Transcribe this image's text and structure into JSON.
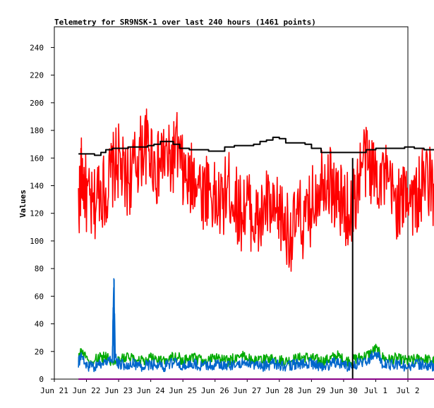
{
  "chart_data": {
    "type": "line",
    "title": "Telemetry for SR9NSK-1 over last 240 hours (1461 points)",
    "ylabel": "Values",
    "xlabel": "",
    "ylim": [
      0,
      255
    ],
    "y_ticks": [
      0,
      20,
      40,
      60,
      80,
      100,
      120,
      140,
      160,
      180,
      200,
      220,
      240
    ],
    "x_ticks": [
      "Jun 21",
      "Jun 22",
      "Jun 23",
      "Jun 24",
      "Jun 25",
      "Jun 26",
      "Jun 27",
      "Jun 28",
      "Jun 29",
      "Jun 30",
      "Jul 1",
      "Jul 2"
    ],
    "x_range_days": [
      "Jun 21",
      "Jul 2"
    ],
    "grid": false,
    "legend": "none",
    "colors": {
      "red": "#ff0000",
      "black": "#000000",
      "green": "#00aa00",
      "blue": "#0066cc",
      "purple": "#880088"
    },
    "series": [
      {
        "color": "red",
        "x_days": [
          0.75,
          0.85,
          1.0,
          1.2,
          1.4,
          1.6,
          1.8,
          2.0,
          2.2,
          2.4,
          2.6,
          2.8,
          3.0,
          3.2,
          3.4,
          3.6,
          3.8,
          4.0,
          4.2,
          4.4,
          4.6,
          4.8,
          5.0,
          5.2,
          5.4,
          5.6,
          5.8,
          6.0,
          6.2,
          6.4,
          6.6,
          6.8,
          7.0,
          7.2,
          7.4,
          7.6,
          7.8,
          8.0,
          8.2,
          8.4,
          8.6,
          8.8,
          9.0,
          9.2,
          9.4,
          9.6,
          9.8,
          10.0,
          10.2,
          10.4,
          10.6,
          10.8,
          11.0,
          11.2,
          11.4,
          11.6,
          11.8,
          12.0,
          12.2,
          12.4,
          12.6
        ],
        "values": [
          125,
          150,
          132,
          120,
          140,
          135,
          150,
          158,
          142,
          148,
          160,
          170,
          165,
          150,
          162,
          155,
          168,
          148,
          140,
          150,
          135,
          140,
          128,
          125,
          140,
          130,
          120,
          128,
          115,
          112,
          128,
          115,
          120,
          110,
          105,
          118,
          110,
          125,
          140,
          150,
          142,
          130,
          126,
          120,
          135,
          160,
          155,
          148,
          150,
          138,
          130,
          125,
          140,
          128,
          135,
          150,
          132,
          140,
          128,
          138,
          132
        ],
        "min_max": [
          80,
          195
        ]
      },
      {
        "color": "black",
        "x_days": [
          0.75,
          1.1,
          1.25,
          1.45,
          1.6,
          1.8,
          2.0,
          2.3,
          2.5,
          2.7,
          2.9,
          3.1,
          3.3,
          3.5,
          3.7,
          3.9,
          4.2,
          4.5,
          4.8,
          5.0,
          5.3,
          5.6,
          5.9,
          6.2,
          6.4,
          6.6,
          6.8,
          7.0,
          7.2,
          7.6,
          7.8,
          8.0,
          8.3,
          8.6,
          8.8,
          9.1,
          9.3,
          9.5,
          9.7,
          10.0,
          10.3,
          10.6,
          10.9,
          11.2,
          11.5,
          11.8,
          12.0,
          12.3,
          12.6
        ],
        "values": [
          163,
          163,
          162,
          164,
          166,
          167,
          167,
          168,
          168,
          168,
          169,
          170,
          172,
          172,
          170,
          167,
          166,
          166,
          165,
          165,
          168,
          169,
          169,
          170,
          172,
          173,
          175,
          174,
          171,
          171,
          170,
          167,
          164,
          164,
          164,
          164,
          164,
          164,
          166,
          167,
          167,
          167,
          168,
          167,
          166,
          166,
          166,
          168,
          169
        ]
      },
      {
        "color": "green",
        "x_days": [
          0.75,
          0.85,
          1.0,
          1.2,
          1.4,
          1.6,
          1.8,
          2.0,
          2.2,
          2.4,
          2.6,
          2.8,
          3.0,
          3.2,
          3.4,
          3.6,
          3.8,
          4.0,
          4.2,
          4.4,
          4.6,
          4.8,
          5.0,
          5.2,
          5.4,
          5.6,
          5.8,
          6.0,
          6.2,
          6.4,
          6.6,
          6.8,
          7.0,
          7.2,
          7.4,
          7.6,
          7.8,
          8.0,
          8.2,
          8.4,
          8.6,
          8.8,
          9.0,
          9.2,
          9.4,
          9.6,
          9.8,
          10.0,
          10.2,
          10.4,
          10.6,
          10.8,
          11.0,
          11.2,
          11.4,
          11.6,
          11.8,
          12.0,
          12.2,
          12.4,
          12.6
        ],
        "values": [
          15,
          20,
          14,
          13,
          15,
          16,
          13,
          14,
          15,
          16,
          14,
          13,
          15,
          14,
          13,
          15,
          16,
          14,
          14,
          15,
          13,
          14,
          15,
          14,
          13,
          15,
          17,
          15,
          14,
          13,
          14,
          15,
          14,
          13,
          14,
          15,
          16,
          15,
          14,
          13,
          15,
          17,
          14,
          13,
          15,
          16,
          18,
          22,
          16,
          14,
          15,
          14,
          13,
          14,
          15,
          14,
          13,
          15,
          14,
          16,
          15
        ]
      },
      {
        "color": "blue",
        "x_days": [
          0.75,
          0.85,
          1.0,
          1.2,
          1.4,
          1.6,
          1.8,
          1.85,
          1.9,
          2.0,
          2.2,
          2.4,
          2.6,
          2.8,
          3.0,
          3.2,
          3.4,
          3.6,
          3.8,
          4.0,
          4.2,
          4.4,
          4.6,
          4.8,
          5.0,
          5.2,
          5.4,
          5.6,
          5.8,
          6.0,
          6.2,
          6.4,
          6.6,
          6.8,
          7.0,
          7.2,
          7.4,
          7.6,
          7.8,
          8.0,
          8.2,
          8.4,
          8.6,
          8.8,
          9.0,
          9.2,
          9.4,
          9.6,
          9.8,
          10.0,
          10.2,
          10.4,
          10.6,
          10.8,
          11.0,
          11.2,
          11.4,
          11.6,
          11.8,
          12.0,
          12.2,
          12.4,
          12.6
        ],
        "values": [
          12,
          18,
          10,
          9,
          11,
          12,
          14,
          72,
          15,
          11,
          10,
          12,
          9,
          10,
          11,
          10,
          9,
          11,
          12,
          10,
          10,
          11,
          9,
          10,
          11,
          10,
          9,
          11,
          12,
          11,
          10,
          9,
          10,
          11,
          10,
          9,
          10,
          11,
          12,
          11,
          10,
          9,
          11,
          13,
          10,
          9,
          11,
          12,
          14,
          20,
          12,
          10,
          11,
          10,
          9,
          10,
          11,
          10,
          9,
          11,
          10,
          12,
          13
        ]
      },
      {
        "color": "black",
        "label_note": "vertical event line",
        "x_days": [
          9.28,
          9.28
        ],
        "values": [
          0,
          160
        ]
      },
      {
        "color": "purple",
        "x_days": [
          0.75,
          12.6
        ],
        "values": [
          0,
          0
        ]
      }
    ]
  }
}
